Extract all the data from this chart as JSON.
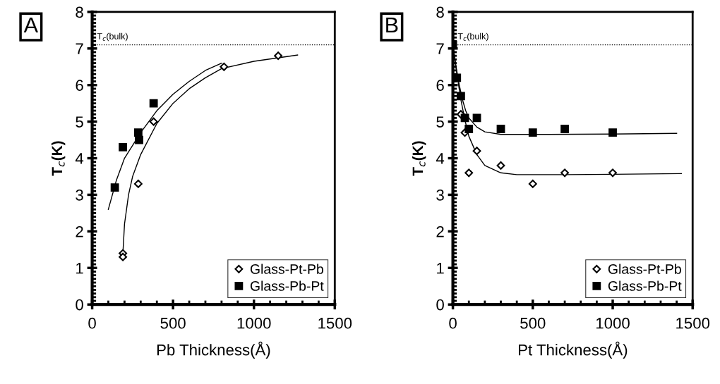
{
  "chart_data": [
    {
      "type": "scatter",
      "xlabel": "Pb Thickness(Å)",
      "ylabel": "T$_{c}$(K)",
      "xlim": [
        0,
        1500
      ],
      "xticks": [
        0,
        500,
        1000,
        1500
      ],
      "ylim": [
        0,
        8
      ],
      "yticks": [
        0,
        1,
        2,
        3,
        4,
        5,
        6,
        7,
        8
      ],
      "legend": "bottom right",
      "grid": false,
      "annotations": [
        "A"
      ],
      "ref_lines": [
        {
          "axis": "y",
          "value": 7.1,
          "label": "T$_{c}$(bulk)",
          "color": "#000000",
          "line_style": "dotted"
        }
      ],
      "series": [
        {
          "name": "Glass-Pt-Pb",
          "color": "#000000",
          "marker": "diamond",
          "x": [
            190,
            190,
            285,
            380,
            815,
            1150
          ],
          "values": [
            1.4,
            1.3,
            3.3,
            5.0,
            6.5,
            6.8
          ]
        },
        {
          "name": "Glass-Pb-Pt",
          "color": "#000000",
          "marker": "square",
          "x": [
            140,
            190,
            285,
            290,
            380
          ],
          "values": [
            3.2,
            4.3,
            4.7,
            4.5,
            5.5
          ]
        },
        {
          "type": "line",
          "color": "#000000",
          "marker": "none",
          "x": [
            190,
            200,
            225,
            250,
            300,
            400,
            500,
            600,
            700,
            800,
            1000,
            1270
          ],
          "values": [
            1.4,
            2.2,
            3.0,
            3.5,
            4.1,
            4.95,
            5.5,
            5.9,
            6.2,
            6.45,
            6.65,
            6.82
          ]
        },
        {
          "type": "line",
          "color": "#000000",
          "marker": "none",
          "x": [
            100,
            150,
            200,
            300,
            400,
            500,
            600,
            700,
            800
          ],
          "values": [
            2.6,
            3.4,
            4.0,
            4.7,
            5.3,
            5.75,
            6.1,
            6.4,
            6.6
          ]
        }
      ]
    },
    {
      "type": "scatter",
      "xlabel": "Pt Thickness(Å)",
      "ylabel": "T$_{c}$(K)",
      "xlim": [
        0,
        1500
      ],
      "xticks": [
        0,
        500,
        1000,
        1500
      ],
      "ylim": [
        0,
        8
      ],
      "yticks": [
        0,
        1,
        2,
        3,
        4,
        5,
        6,
        7,
        8
      ],
      "legend": "bottom right",
      "grid": false,
      "annotations": [
        "B"
      ],
      "ref_lines": [
        {
          "axis": "y",
          "value": 7.1,
          "label": "T$_{c}$(bulk)",
          "color": "#000000",
          "line_style": "dotted"
        }
      ],
      "series": [
        {
          "name": "Glass-Pt-Pb",
          "color": "#000000",
          "marker": "diamond",
          "x": [
            50,
            75,
            100,
            150,
            300,
            500,
            700,
            1000
          ],
          "values": [
            5.2,
            4.7,
            3.6,
            4.2,
            3.8,
            3.3,
            3.6,
            3.6
          ]
        },
        {
          "name": "Glass-Pb-Pt",
          "color": "#000000",
          "marker": "square",
          "x": [
            0,
            25,
            50,
            75,
            100,
            150,
            300,
            500,
            700,
            1000
          ],
          "values": [
            7.1,
            6.2,
            5.7,
            5.1,
            4.8,
            5.1,
            4.8,
            4.7,
            4.8,
            4.7
          ]
        },
        {
          "type": "line",
          "color": "#000000",
          "marker": "none",
          "x": [
            0,
            20,
            40,
            60,
            80,
            100,
            150,
            200,
            300,
            600,
            1000,
            1400
          ],
          "values": [
            7.1,
            6.5,
            6.0,
            5.6,
            5.3,
            5.1,
            4.85,
            4.72,
            4.65,
            4.65,
            4.66,
            4.68
          ]
        },
        {
          "type": "line",
          "color": "#000000",
          "marker": "none",
          "x": [
            0,
            25,
            50,
            75,
            100,
            150,
            200,
            300,
            400,
            700,
            1000,
            1430
          ],
          "values": [
            7.1,
            6.3,
            5.6,
            5.05,
            4.6,
            4.1,
            3.8,
            3.6,
            3.55,
            3.55,
            3.56,
            3.58
          ]
        }
      ]
    }
  ]
}
